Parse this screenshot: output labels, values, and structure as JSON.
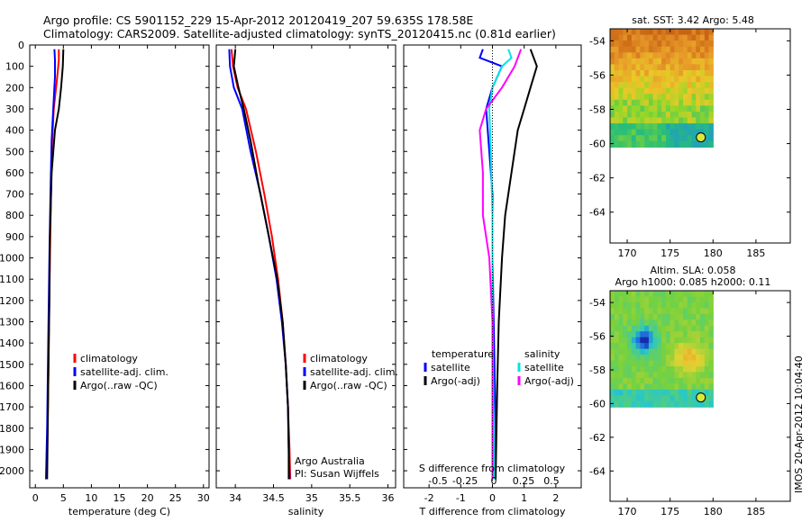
{
  "header": {
    "line1": "Argo profile: CS 5901152_229 15-Apr-2012 20120419_207 59.635S 178.58E",
    "line2": "Climatology: CARS2009. Satellite-adjusted climatology: synTS_20120415.nc (0.81d earlier)"
  },
  "side_label": "IMOS 20-Apr-2012 10:04:40",
  "colors": {
    "clim": "#ff0000",
    "sat": "#0000ff",
    "argo": "#000000",
    "sal_sat": "#00e5e5",
    "sal_argo": "#ff00ff"
  },
  "chart_data": [
    {
      "id": "temp",
      "type": "line",
      "xlabel": "temperature (deg C)",
      "xlim": [
        -1,
        31
      ],
      "xticks": [
        0,
        5,
        10,
        15,
        20,
        25,
        30
      ],
      "ylim": [
        0,
        2080
      ],
      "yticks": [
        0,
        100,
        200,
        300,
        400,
        500,
        600,
        700,
        800,
        900,
        1000,
        1100,
        1200,
        1300,
        1400,
        1500,
        1600,
        1700,
        1800,
        1900,
        2000
      ],
      "legend": [
        "climatology",
        "satellite-adj. clim.",
        "Argo(..raw -QC)"
      ],
      "series": [
        {
          "key": "clim",
          "color": "#ff0000",
          "points": [
            [
              4.2,
              20
            ],
            [
              4.2,
              70
            ],
            [
              3.9,
              150
            ],
            [
              3.3,
              300
            ],
            [
              3.0,
              450
            ],
            [
              2.8,
              700
            ],
            [
              2.6,
              1000
            ],
            [
              2.4,
              1400
            ],
            [
              2.2,
              1800
            ],
            [
              2.0,
              2040
            ]
          ]
        },
        {
          "key": "sat",
          "color": "#0000ff",
          "points": [
            [
              3.4,
              20
            ],
            [
              3.5,
              70
            ],
            [
              3.5,
              150
            ],
            [
              3.2,
              300
            ],
            [
              2.9,
              450
            ],
            [
              2.7,
              700
            ],
            [
              2.5,
              1000
            ],
            [
              2.3,
              1400
            ],
            [
              2.1,
              1800
            ],
            [
              1.9,
              2040
            ]
          ]
        },
        {
          "key": "argo",
          "color": "#000000",
          "points": [
            [
              5.0,
              20
            ],
            [
              4.9,
              100
            ],
            [
              4.6,
              200
            ],
            [
              4.2,
              300
            ],
            [
              3.5,
              400
            ],
            [
              2.9,
              600
            ],
            [
              2.6,
              900
            ],
            [
              2.5,
              1200
            ],
            [
              2.3,
              1600
            ],
            [
              2.1,
              2040
            ]
          ]
        }
      ]
    },
    {
      "id": "sal",
      "type": "line",
      "xlabel": "salinity",
      "xlim": [
        33.75,
        36.1
      ],
      "xticks": [
        34,
        34.5,
        35,
        35.5,
        36
      ],
      "ylim": [
        0,
        2080
      ],
      "legend": [
        "climatology",
        "satellite-adj. clim.",
        "Argo(..raw -QC)"
      ],
      "annotation": [
        "Argo Australia",
        "PI: Susan Wijffels"
      ],
      "series": [
        {
          "key": "clim",
          "color": "#ff0000",
          "points": [
            [
              33.95,
              20
            ],
            [
              33.97,
              100
            ],
            [
              34.03,
              200
            ],
            [
              34.14,
              300
            ],
            [
              34.27,
              500
            ],
            [
              34.38,
              700
            ],
            [
              34.48,
              900
            ],
            [
              34.56,
              1100
            ],
            [
              34.62,
              1300
            ],
            [
              34.66,
              1500
            ],
            [
              34.69,
              1700
            ],
            [
              34.71,
              1900
            ],
            [
              34.72,
              2040
            ]
          ]
        },
        {
          "key": "sat",
          "color": "#0000ff",
          "points": [
            [
              33.92,
              20
            ],
            [
              33.93,
              100
            ],
            [
              33.98,
              200
            ],
            [
              34.09,
              300
            ],
            [
              34.2,
              500
            ],
            [
              34.33,
              700
            ],
            [
              34.44,
              900
            ],
            [
              34.54,
              1100
            ],
            [
              34.61,
              1300
            ],
            [
              34.66,
              1500
            ],
            [
              34.69,
              1700
            ],
            [
              34.7,
              1900
            ],
            [
              34.71,
              2040
            ]
          ]
        },
        {
          "key": "argo",
          "color": "#000000",
          "points": [
            [
              34.0,
              20
            ],
            [
              33.98,
              100
            ],
            [
              34.04,
              200
            ],
            [
              34.11,
              300
            ],
            [
              34.2,
              450
            ],
            [
              34.3,
              650
            ],
            [
              34.44,
              900
            ],
            [
              34.55,
              1100
            ],
            [
              34.62,
              1300
            ],
            [
              34.66,
              1500
            ],
            [
              34.69,
              1700
            ],
            [
              34.7,
              1900
            ],
            [
              34.7,
              2040
            ]
          ]
        }
      ]
    },
    {
      "id": "diff",
      "type": "line",
      "top_label": "S difference from climatology",
      "top_ticks": [
        "-0.5",
        "-0.25",
        "0",
        "0.25",
        "0.5"
      ],
      "xlabel": "T difference from climatology",
      "xlim": [
        -2.8,
        2.8
      ],
      "xticks": [
        -2,
        -1,
        0,
        1,
        2
      ],
      "ylim": [
        0,
        2080
      ],
      "legend_t": {
        "title": "temperature",
        "items": [
          "satellite",
          "Argo(-adj)"
        ]
      },
      "legend_s": {
        "title": "salinity",
        "items": [
          "satellite",
          "Argo(-adj)"
        ]
      },
      "series": [
        {
          "key": "t_sat",
          "color": "#0000ff",
          "points": [
            [
              -0.3,
              20
            ],
            [
              -0.4,
              60
            ],
            [
              0.3,
              100
            ],
            [
              0.0,
              200
            ],
            [
              -0.2,
              300
            ],
            [
              -0.1,
              500
            ],
            [
              0.0,
              700
            ],
            [
              0.0,
              1000
            ],
            [
              0.05,
              1400
            ],
            [
              0.1,
              1800
            ],
            [
              0.1,
              2040
            ]
          ]
        },
        {
          "key": "t_argo",
          "color": "#000000",
          "points": [
            [
              1.2,
              20
            ],
            [
              1.4,
              100
            ],
            [
              1.2,
              200
            ],
            [
              1.0,
              300
            ],
            [
              0.8,
              400
            ],
            [
              0.6,
              600
            ],
            [
              0.4,
              800
            ],
            [
              0.3,
              1000
            ],
            [
              0.2,
              1300
            ],
            [
              0.15,
              1600
            ],
            [
              0.1,
              2040
            ]
          ]
        },
        {
          "key": "s_sat",
          "color": "#00e5e5",
          "points": [
            [
              0.5,
              20
            ],
            [
              0.6,
              60
            ],
            [
              0.3,
              100
            ],
            [
              0.0,
              200
            ],
            [
              -0.1,
              300
            ],
            [
              -0.05,
              500
            ],
            [
              0.0,
              800
            ],
            [
              0.0,
              1200
            ],
            [
              0.05,
              2040
            ]
          ]
        },
        {
          "key": "s_argo",
          "color": "#ff00ff",
          "points": [
            [
              0.9,
              20
            ],
            [
              0.7,
              100
            ],
            [
              0.3,
              200
            ],
            [
              -0.2,
              300
            ],
            [
              -0.4,
              400
            ],
            [
              -0.3,
              600
            ],
            [
              -0.3,
              800
            ],
            [
              -0.1,
              1000
            ],
            [
              0.0,
              1300
            ],
            [
              0.0,
              2040
            ]
          ]
        }
      ]
    },
    {
      "id": "map_sst",
      "type": "heatmap",
      "title": "sat. SST: 3.42 Argo: 5.48",
      "xticks": [
        170,
        175,
        180,
        185
      ],
      "yticks": [
        -54,
        -56,
        -58,
        -60,
        -62,
        -64
      ],
      "xlim": [
        168,
        189
      ],
      "ylim": [
        -65.8,
        -53.3
      ],
      "data_extent": [
        168,
        180,
        -60.2,
        -53.3
      ],
      "float": [
        178.58,
        -59.635
      ]
    },
    {
      "id": "map_sla",
      "type": "heatmap",
      "title_lines": [
        "Altim. SLA: 0.058",
        "Argo h1000: 0.085 h2000: 0.11"
      ],
      "xticks": [
        170,
        175,
        180,
        185
      ],
      "yticks": [
        -54,
        -56,
        -58,
        -60,
        -62,
        -64
      ],
      "xlim": [
        168,
        189
      ],
      "ylim": [
        -65.8,
        -53.3
      ],
      "data_extent": [
        168,
        180,
        -60.2,
        -53.3
      ],
      "float": [
        178.58,
        -59.635
      ]
    }
  ]
}
